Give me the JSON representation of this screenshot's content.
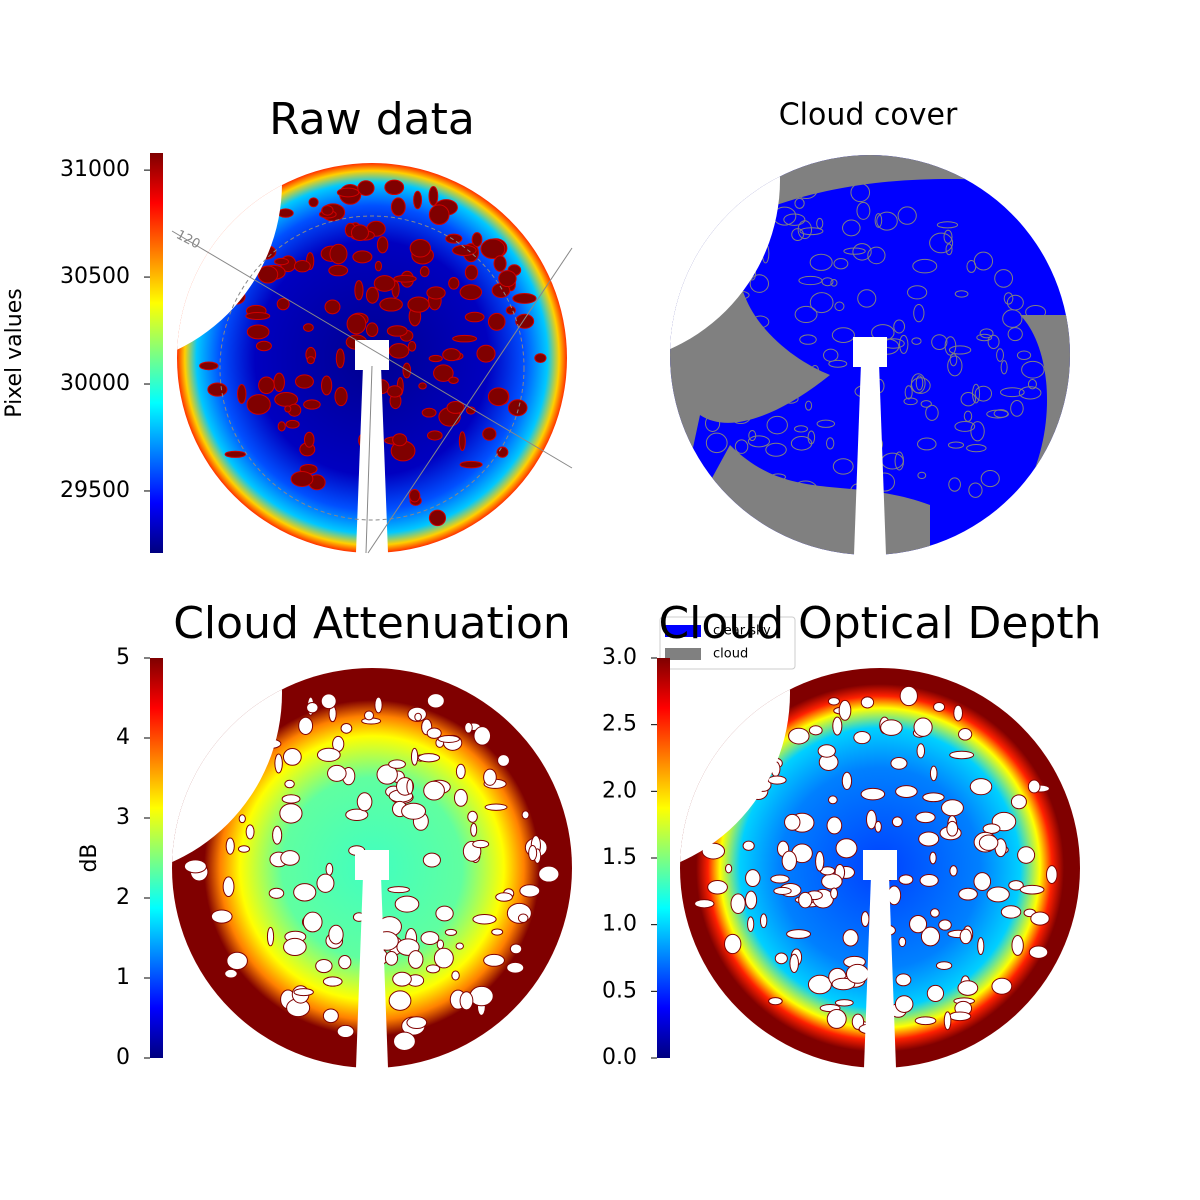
{
  "chart_data": [
    {
      "type": "image",
      "title": "Raw data",
      "ylabel": "Pixel values",
      "colormap": "jet",
      "ylim": [
        29210,
        31080
      ],
      "yticks": [
        29500,
        30000,
        30500,
        31000
      ],
      "annotation": "120"
    },
    {
      "type": "image",
      "title": "Cloud cover",
      "series": [
        {
          "name": "clear sky",
          "color": "#0000ff"
        },
        {
          "name": "cloud",
          "color": "#808080"
        }
      ]
    },
    {
      "type": "image",
      "title": "Cloud Attenuation",
      "ylabel": "dB",
      "colormap": "jet",
      "ylim": [
        0,
        5
      ],
      "yticks": [
        0,
        1,
        2,
        3,
        4,
        5
      ]
    },
    {
      "type": "image",
      "title": "Cloud Optical Depth",
      "colormap": "jet",
      "ylim": [
        0,
        3
      ],
      "yticks": [
        {
          "value": 0,
          "label": "0.0"
        },
        0.5,
        {
          "value": 1,
          "label": "1.0"
        },
        1.5,
        {
          "value": 2,
          "label": "2.0"
        },
        2.5,
        {
          "value": 3,
          "label": "3.0"
        }
      ]
    }
  ]
}
